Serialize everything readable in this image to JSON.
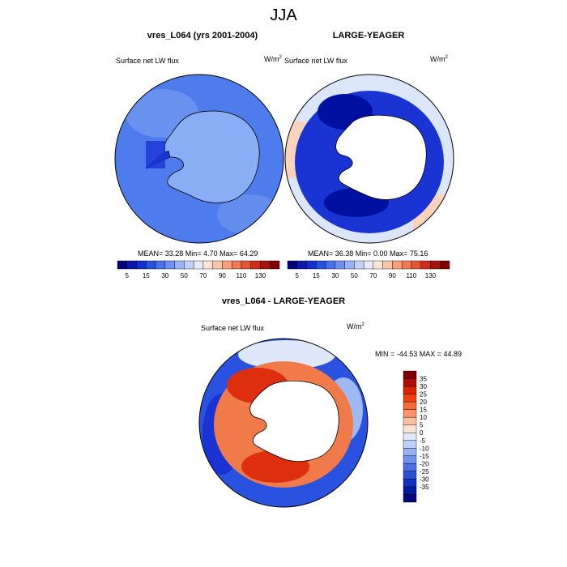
{
  "figure": {
    "title": "JJA"
  },
  "panels": [
    {
      "title": "vres_L064 (yrs 2001-2004)",
      "variable": "Surface net LW flux",
      "units": "W/m",
      "units_sup": "2",
      "stats": "MEAN=  33.28  Min=   4.70  Max=  64.29",
      "fill_palette": "blue"
    },
    {
      "title": "LARGE-YEAGER",
      "variable": "Surface net LW flux",
      "units": "W/m",
      "units_sup": "2",
      "stats": "MEAN=  36.38  Min=   0.00  Max=  75.16",
      "fill_palette": "mixed"
    },
    {
      "title": "vres_L064 - LARGE-YEAGER",
      "variable": "Surface net LW flux",
      "units": "W/m",
      "units_sup": "2",
      "stats": "MIN = -44.53 MAX =  44.89",
      "fill_palette": "difference"
    }
  ],
  "top_colorbar": {
    "labels": [
      "5",
      "15",
      "30",
      "50",
      "70",
      "90",
      "110",
      "130"
    ],
    "colors": [
      "#00007f",
      "#0a1aa8",
      "#1030d0",
      "#2a52e0",
      "#4a72ec",
      "#6f92f2",
      "#98b3f6",
      "#c2d3fb",
      "#e4ecfd",
      "#fde6d6",
      "#fbc6a8",
      "#f7a07a",
      "#f07a55",
      "#e55434",
      "#cc2e18",
      "#a5140a",
      "#7f0000"
    ]
  },
  "diff_colorbar": {
    "labels": [
      "35",
      "30",
      "25",
      "20",
      "15",
      "10",
      "5",
      "0",
      "-5",
      "-10",
      "-15",
      "-20",
      "-25",
      "-30",
      "-35"
    ],
    "colors": [
      "#7f0000",
      "#b00c00",
      "#dd2200",
      "#f04010",
      "#f66a3a",
      "#f9946a",
      "#fbbfa0",
      "#fde2d4",
      "#e0eafb",
      "#bccff6",
      "#95b3f2",
      "#6f92ec",
      "#4a70e4",
      "#2a50d8",
      "#1030c0",
      "#001c9a",
      "#000a78"
    ]
  },
  "colors": {
    "ocean_blue": "#4f7cec",
    "land_blue": "#8aaef6",
    "deep_blue": "#1a34d4",
    "dark_blue": "#0010a0",
    "warm_light": "#fbd3bd",
    "warm_orange": "#f07a4a",
    "warm_red": "#dd2f10",
    "outline": "#000000"
  }
}
